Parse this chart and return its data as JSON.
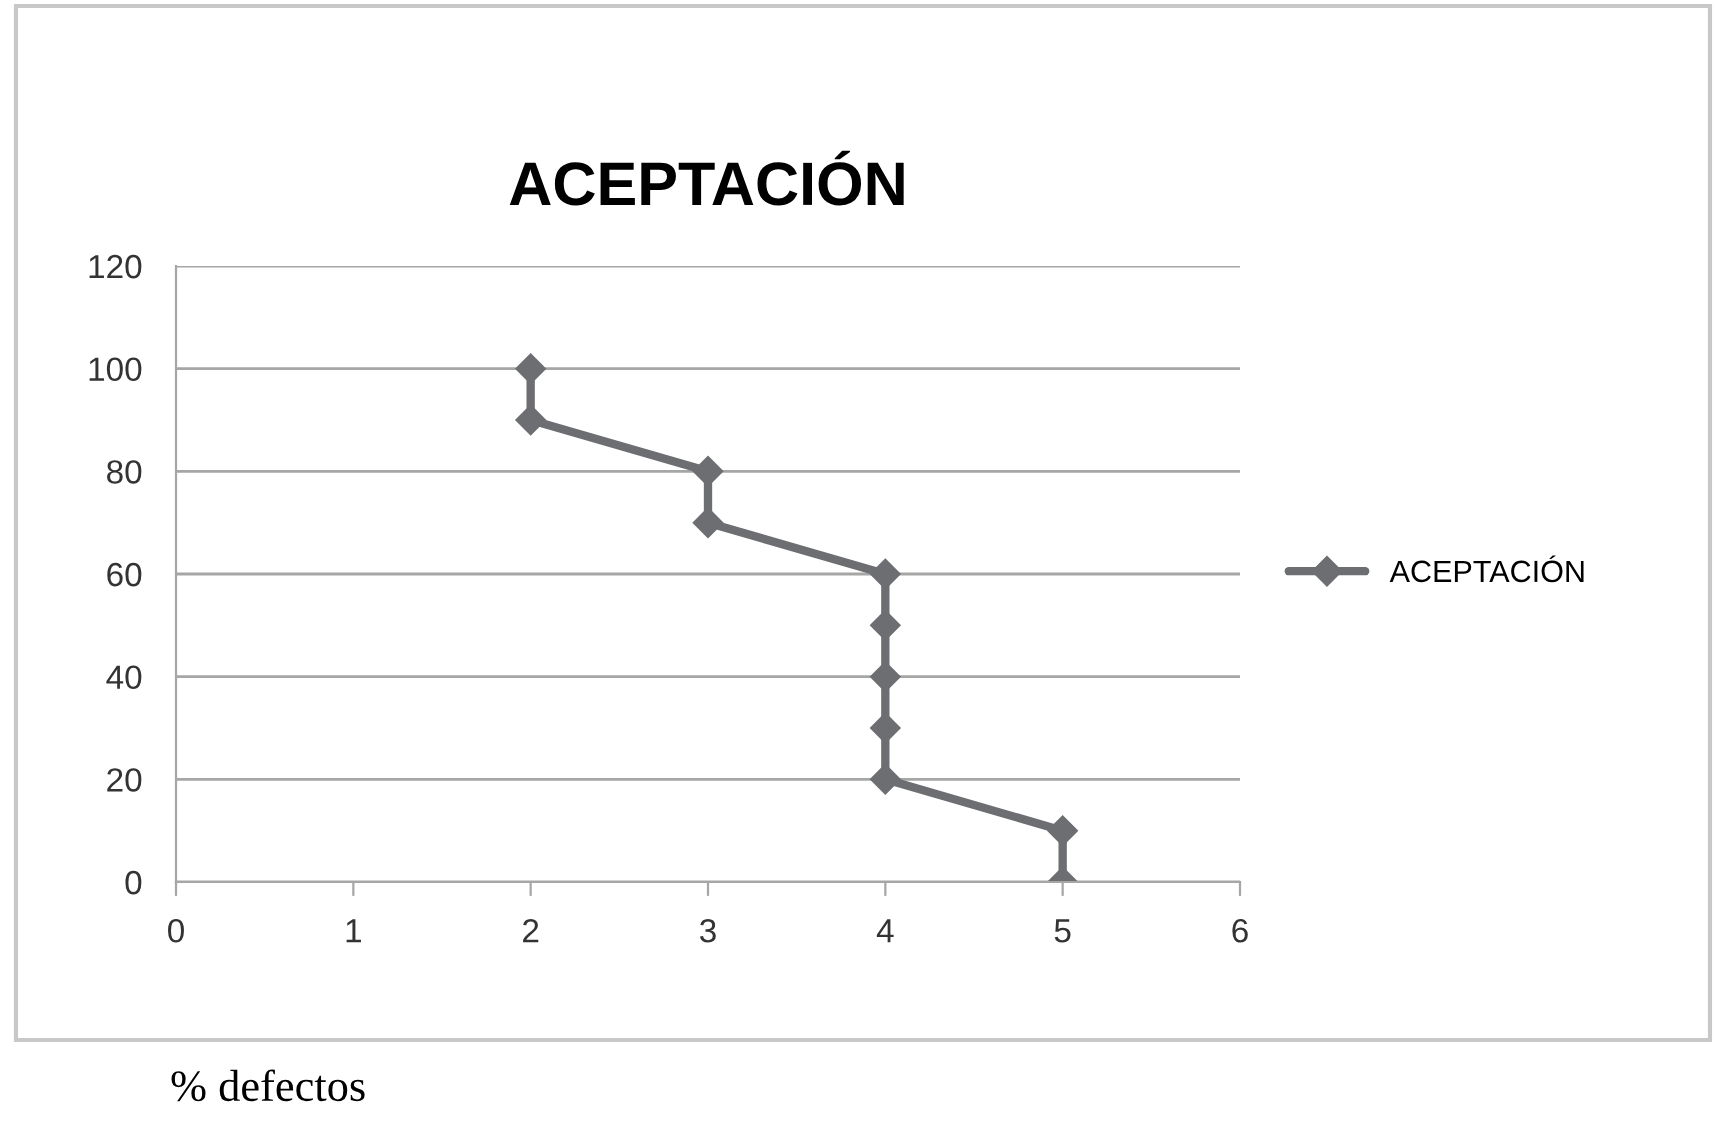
{
  "chart_data": {
    "type": "line",
    "title": "ACEPTACIÓN",
    "series": [
      {
        "name": "ACEPTACIÓN",
        "color": "#6d6e71",
        "x": [
          5,
          5,
          4,
          4,
          4,
          4,
          4,
          3,
          3,
          2,
          2
        ],
        "values": [
          0,
          10,
          20,
          30,
          40,
          50,
          60,
          70,
          80,
          90,
          100
        ]
      }
    ],
    "xlim": [
      0,
      6
    ],
    "xticks": [
      0,
      1,
      2,
      3,
      4,
      5,
      6
    ],
    "ylim": [
      0,
      120
    ],
    "yticks": [
      0,
      20,
      40,
      60,
      80,
      100,
      120
    ],
    "grid": "y",
    "legend": "right",
    "marker": "diamond",
    "line_style": "solid",
    "annotations": [
      "% defectos"
    ]
  }
}
